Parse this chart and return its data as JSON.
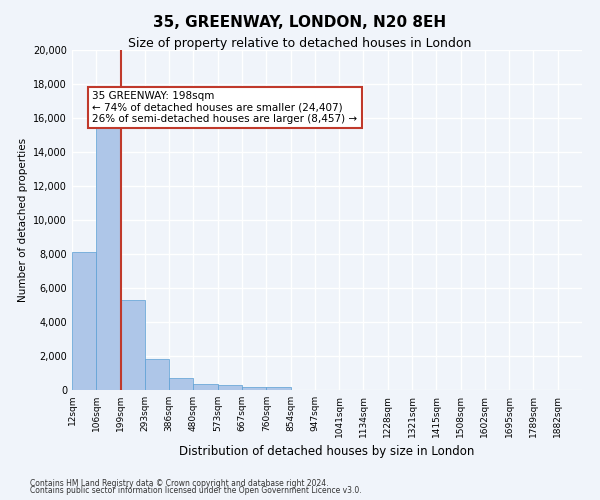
{
  "title1": "35, GREENWAY, LONDON, N20 8EH",
  "title2": "Size of property relative to detached houses in London",
  "xlabel": "Distribution of detached houses by size in London",
  "ylabel": "Number of detached properties",
  "bin_labels": [
    "12sqm",
    "106sqm",
    "199sqm",
    "293sqm",
    "386sqm",
    "480sqm",
    "573sqm",
    "667sqm",
    "760sqm",
    "854sqm",
    "947sqm",
    "1041sqm",
    "1134sqm",
    "1228sqm",
    "1321sqm",
    "1415sqm",
    "1508sqm",
    "1602sqm",
    "1695sqm",
    "1789sqm",
    "1882sqm"
  ],
  "bar_values": [
    8100,
    16600,
    5300,
    1850,
    700,
    350,
    270,
    190,
    150,
    0,
    0,
    0,
    0,
    0,
    0,
    0,
    0,
    0,
    0,
    0,
    0
  ],
  "bar_color": "#aec6e8",
  "bar_edge_color": "#5a9fd4",
  "vline_x": 2,
  "vline_color": "#c0392b",
  "annotation_text": "35 GREENWAY: 198sqm\n← 74% of detached houses are smaller (24,407)\n26% of semi-detached houses are larger (8,457) →",
  "annotation_box_color": "#c0392b",
  "ylim": [
    0,
    20000
  ],
  "yticks": [
    0,
    2000,
    4000,
    6000,
    8000,
    10000,
    12000,
    14000,
    16000,
    18000,
    20000
  ],
  "footer1": "Contains HM Land Registry data © Crown copyright and database right 2024.",
  "footer2": "Contains public sector information licensed under the Open Government Licence v3.0.",
  "bg_color": "#f0f4fa",
  "grid_color": "#ffffff"
}
